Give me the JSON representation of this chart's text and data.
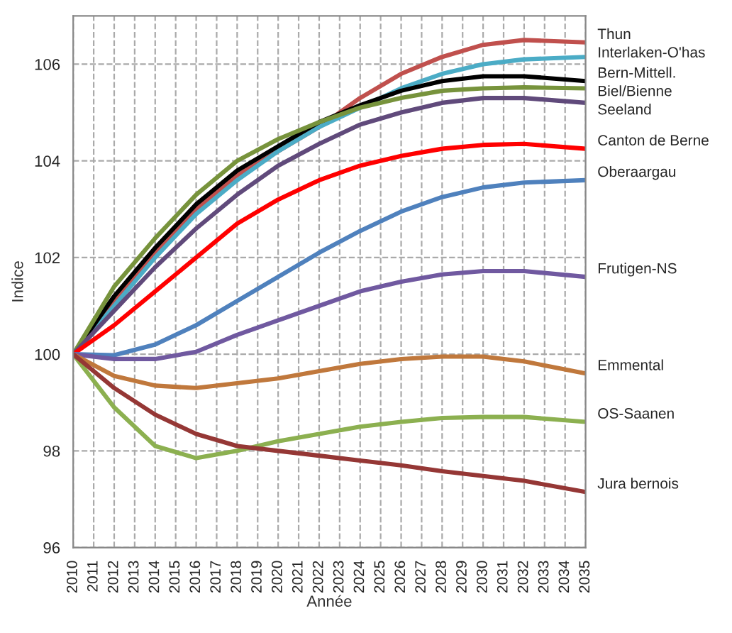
{
  "chart_data": {
    "type": "line",
    "xlabel": "Année",
    "ylabel": "Indice",
    "x": [
      2010,
      2012,
      2014,
      2016,
      2018,
      2020,
      2022,
      2024,
      2026,
      2028,
      2030,
      2032,
      2035
    ],
    "xlim": [
      2010,
      2035
    ],
    "xticks": [
      2010,
      2011,
      2012,
      2013,
      2014,
      2015,
      2016,
      2017,
      2018,
      2019,
      2020,
      2021,
      2022,
      2023,
      2024,
      2025,
      2026,
      2027,
      2028,
      2029,
      2030,
      2031,
      2032,
      2033,
      2034,
      2035
    ],
    "ylim": [
      96,
      107
    ],
    "yticks": [
      96,
      98,
      100,
      102,
      104,
      106
    ],
    "grid": true,
    "marker": "none",
    "line_style": "solid",
    "series": [
      {
        "name": "Thun",
        "color": "#c0504d",
        "values": [
          100,
          101.1,
          102.1,
          103.0,
          103.7,
          104.2,
          104.7,
          105.3,
          105.8,
          106.15,
          106.4,
          106.5,
          106.45
        ]
      },
      {
        "name": "Interlaken-O'has",
        "color": "#4bacc6",
        "values": [
          100,
          101.0,
          102.0,
          102.9,
          103.6,
          104.2,
          104.7,
          105.1,
          105.5,
          105.8,
          106.0,
          106.1,
          106.15
        ]
      },
      {
        "name": "Bern-Mittell.",
        "color": "#000000",
        "values": [
          100,
          101.2,
          102.2,
          103.1,
          103.8,
          104.3,
          104.8,
          105.15,
          105.45,
          105.65,
          105.75,
          105.75,
          105.65
        ]
      },
      {
        "name": "Biel/Bienne",
        "color": "#77933c",
        "values": [
          100,
          101.4,
          102.4,
          103.3,
          104.0,
          104.45,
          104.8,
          105.1,
          105.3,
          105.45,
          105.5,
          105.52,
          105.5
        ]
      },
      {
        "name": "Seeland",
        "color": "#604a7b",
        "values": [
          100,
          100.9,
          101.8,
          102.6,
          103.3,
          103.9,
          104.35,
          104.75,
          105.0,
          105.2,
          105.3,
          105.3,
          105.2
        ]
      },
      {
        "name": "Canton de Berne",
        "color": "#ff0000",
        "values": [
          100,
          100.6,
          101.3,
          102.0,
          102.7,
          103.2,
          103.6,
          103.9,
          104.1,
          104.25,
          104.33,
          104.35,
          104.25
        ]
      },
      {
        "name": "Oberaargau",
        "color": "#4f81bd",
        "values": [
          100,
          99.98,
          100.2,
          100.6,
          101.1,
          101.6,
          102.1,
          102.55,
          102.95,
          103.25,
          103.45,
          103.55,
          103.6
        ]
      },
      {
        "name": "Frutigen-NS",
        "color": "#7059a0",
        "values": [
          100,
          99.9,
          99.9,
          100.05,
          100.4,
          100.7,
          101.0,
          101.3,
          101.5,
          101.65,
          101.72,
          101.72,
          101.6
        ]
      },
      {
        "name": "Emmental",
        "color": "#c0783c",
        "values": [
          100,
          99.55,
          99.35,
          99.3,
          99.4,
          99.5,
          99.65,
          99.8,
          99.9,
          99.95,
          99.95,
          99.85,
          99.6
        ]
      },
      {
        "name": "OS-Saanen",
        "color": "#8cb050",
        "values": [
          100,
          98.9,
          98.1,
          97.85,
          98.0,
          98.2,
          98.35,
          98.5,
          98.6,
          98.68,
          98.7,
          98.7,
          98.6
        ]
      },
      {
        "name": "Jura bernois",
        "color": "#953735",
        "values": [
          100,
          99.3,
          98.75,
          98.35,
          98.1,
          98.0,
          97.9,
          97.8,
          97.7,
          97.58,
          97.48,
          97.38,
          97.15
        ]
      }
    ]
  }
}
